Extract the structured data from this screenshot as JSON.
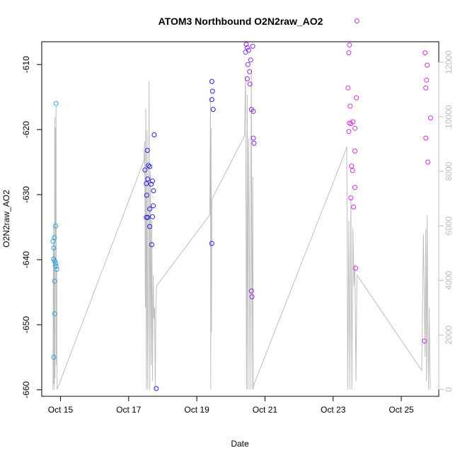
{
  "chart_data": {
    "type": "scatter",
    "title": "ATOM3 Northbound O2N2raw_AO2",
    "xlabel": "Date",
    "ylabel": "O2N2raw_AO2",
    "y2label": "",
    "xlim": [
      14.45,
      26.1
    ],
    "ylim": [
      -661,
      -606.5
    ],
    "y2lim": [
      -250,
      12750
    ],
    "x_unit": "day of October",
    "x_ticks": [
      15,
      17,
      19,
      21,
      23,
      25
    ],
    "x_tick_labels": [
      "Oct 15",
      "Oct 17",
      "Oct 19",
      "Oct 21",
      "Oct 23",
      "Oct 25"
    ],
    "y_ticks": [
      -610,
      -620,
      -630,
      -640,
      -650,
      -660
    ],
    "y_tick_labels": [
      "-610",
      "-620",
      "-630",
      "-640",
      "-650",
      "-660"
    ],
    "y2_ticks": [
      0,
      2000,
      4000,
      6000,
      8000,
      10000,
      12000
    ],
    "y2_tick_labels": [
      "0",
      "2000",
      "4000",
      "6000",
      "8000",
      "10000",
      "12000"
    ],
    "grid": false,
    "legend": "none",
    "colors": {
      "line": "#bebebe",
      "axis": "#000000",
      "right_axis": "#bdbdbd",
      "series": [
        "#29a3df",
        "#2323e0",
        "#8a2be2",
        "#cc33dd"
      ]
    },
    "series": [
      {
        "color": "#29a3df",
        "points": [
          [
            14.78,
            -637.2
          ],
          [
            14.8,
            -638.2
          ],
          [
            14.82,
            -636.6
          ],
          [
            14.8,
            -639.9
          ],
          [
            14.83,
            -640.2
          ],
          [
            14.85,
            -640.6
          ],
          [
            14.87,
            -641.0
          ],
          [
            14.89,
            -641.5
          ],
          [
            14.83,
            -643.3
          ],
          [
            14.83,
            -648.3
          ],
          [
            14.8,
            -655.0
          ],
          [
            14.87,
            -616.0
          ],
          [
            14.86,
            -634.8
          ]
        ]
      },
      {
        "color": "#2323e0",
        "points": [
          [
            17.48,
            -626.2
          ],
          [
            17.52,
            -628.3
          ],
          [
            17.56,
            -627.6
          ],
          [
            17.53,
            -630.1
          ],
          [
            17.58,
            -625.5
          ],
          [
            17.55,
            -623.2
          ],
          [
            17.62,
            -625.7
          ],
          [
            17.66,
            -628.4
          ],
          [
            17.7,
            -627.9
          ],
          [
            17.73,
            -629.4
          ],
          [
            17.62,
            -632.2
          ],
          [
            17.72,
            -631.7
          ],
          [
            17.52,
            -633.5
          ],
          [
            17.56,
            -633.5
          ],
          [
            17.7,
            -633.4
          ],
          [
            17.62,
            -634.9
          ],
          [
            17.68,
            -637.7
          ],
          [
            17.75,
            -620.8
          ],
          [
            17.81,
            -659.8
          ],
          [
            19.44,
            -612.6
          ],
          [
            19.46,
            -614.1
          ],
          [
            19.44,
            -615.4
          ],
          [
            19.48,
            -616.9
          ],
          [
            19.44,
            -637.5
          ]
        ]
      },
      {
        "color": "#8a2be2",
        "points": [
          [
            20.45,
            -606.9
          ],
          [
            20.48,
            -607.4
          ],
          [
            20.43,
            -608.1
          ],
          [
            20.52,
            -607.8
          ],
          [
            20.58,
            -609.3
          ],
          [
            20.5,
            -610.0
          ],
          [
            20.55,
            -611.1
          ],
          [
            20.48,
            -612.2
          ],
          [
            20.56,
            -613.0
          ],
          [
            20.6,
            -616.9
          ],
          [
            20.66,
            -617.2
          ],
          [
            20.64,
            -607.2
          ],
          [
            20.66,
            -621.3
          ],
          [
            20.68,
            -622.1
          ],
          [
            20.6,
            -644.8
          ],
          [
            20.62,
            -645.7
          ]
        ]
      },
      {
        "color": "#cc33dd",
        "points": [
          [
            23.48,
            -607.0
          ],
          [
            23.46,
            -608.2
          ],
          [
            23.44,
            -613.6
          ],
          [
            23.5,
            -616.4
          ],
          [
            23.48,
            -619.0
          ],
          [
            23.52,
            -619.1
          ],
          [
            23.46,
            -620.3
          ],
          [
            23.58,
            -618.8
          ],
          [
            23.64,
            -619.8
          ],
          [
            23.68,
            -615.1
          ],
          [
            23.7,
            -603.3
          ],
          [
            23.64,
            -623.3
          ],
          [
            23.54,
            -625.6
          ],
          [
            23.57,
            -626.3
          ],
          [
            23.64,
            -628.9
          ],
          [
            23.52,
            -630.5
          ],
          [
            23.6,
            -631.9
          ],
          [
            23.66,
            -641.3
          ],
          [
            25.7,
            -608.2
          ],
          [
            25.76,
            -610.1
          ],
          [
            25.74,
            -612.4
          ],
          [
            25.72,
            -613.6
          ],
          [
            25.86,
            -618.2
          ],
          [
            25.72,
            -621.3
          ],
          [
            25.78,
            -625.0
          ],
          [
            25.68,
            -652.5
          ]
        ]
      }
    ],
    "line_series": {
      "axis": "right",
      "x": [
        14.78,
        14.79,
        14.8,
        14.81,
        14.82,
        14.83,
        14.84,
        14.85,
        14.86,
        14.87,
        14.88,
        14.89,
        14.9,
        17.45,
        17.47,
        17.49,
        17.5,
        17.52,
        17.54,
        17.56,
        17.58,
        17.6,
        17.62,
        17.64,
        17.66,
        17.68,
        17.7,
        17.72,
        17.74,
        17.76,
        17.78,
        17.8,
        17.82,
        19.38,
        19.4,
        19.41,
        19.42,
        19.43,
        19.44,
        19.45,
        20.4,
        20.43,
        20.46,
        20.48,
        20.5,
        20.52,
        20.54,
        20.56,
        20.58,
        20.6,
        20.62,
        20.64,
        20.66,
        20.68,
        23.35,
        23.4,
        23.43,
        23.46,
        23.49,
        23.52,
        23.55,
        23.58,
        23.61,
        23.64,
        23.67,
        23.7,
        25.6,
        25.65,
        25.7,
        25.72,
        25.74,
        25.76,
        25.78,
        25.8,
        25.82,
        25.85
      ],
      "y": [
        0,
        6000,
        200,
        5200,
        0,
        10000,
        400,
        9600,
        5400,
        10400,
        900,
        4600,
        0,
        8400,
        9100,
        3000,
        10300,
        0,
        9500,
        0,
        3200,
        11300,
        0,
        8000,
        900,
        6200,
        300,
        4200,
        2600,
        3000,
        0,
        3200,
        3800,
        6400,
        10700,
        0,
        9600,
        2100,
        6700,
        7000,
        9300,
        11500,
        0,
        10800,
        0,
        9200,
        6200,
        0,
        5600,
        11700,
        0,
        7800,
        0,
        200,
        8700,
        8900,
        0,
        6200,
        0,
        7000,
        0,
        5900,
        3800,
        4600,
        300,
        4200,
        700,
        5700,
        1200,
        5900,
        300,
        6400,
        1900,
        0,
        3000,
        0
      ]
    }
  }
}
